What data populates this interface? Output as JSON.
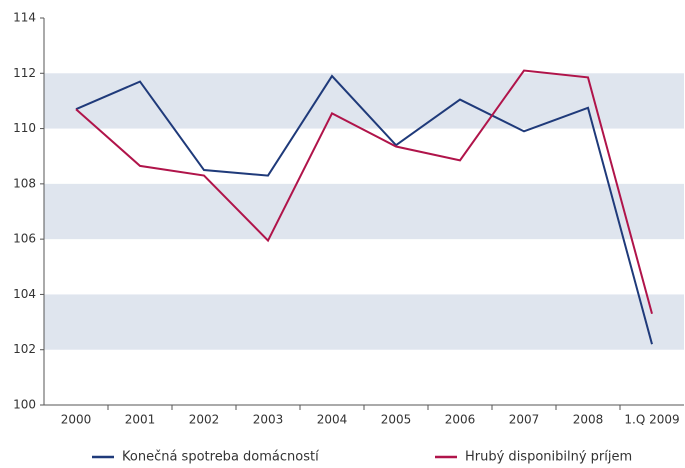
{
  "chart_data": {
    "type": "line",
    "categories": [
      "2000",
      "2001",
      "2002",
      "2003",
      "2004",
      "2005",
      "2006",
      "2007",
      "2008",
      "1.Q 2009"
    ],
    "series": [
      {
        "name": "Konečná spotreba domácností",
        "color": "#1f3a7a",
        "values": [
          110.7,
          111.7,
          108.5,
          108.3,
          111.9,
          109.4,
          111.05,
          109.9,
          110.75,
          102.2
        ]
      },
      {
        "name": "Hrubý disponibilný príjem",
        "color": "#b0144a",
        "values": [
          110.7,
          108.65,
          108.3,
          105.95,
          110.55,
          109.35,
          108.85,
          112.1,
          111.85,
          103.3
        ]
      }
    ],
    "ylim": [
      100,
      114
    ],
    "yticks": [
      100,
      102,
      104,
      106,
      108,
      110,
      112,
      114
    ],
    "grid": true,
    "legend": "bottom"
  }
}
